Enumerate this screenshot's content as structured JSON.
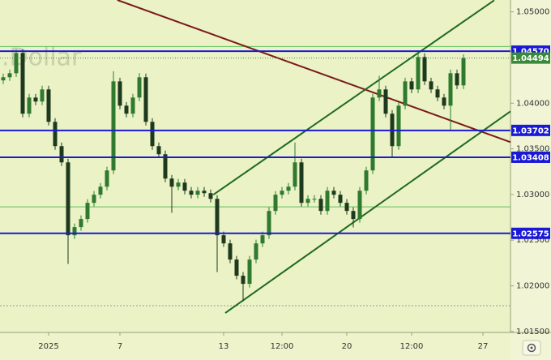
{
  "chart_data": {
    "type": "candlestick",
    "watermark": ".Dollar",
    "categories": [
      null,
      null,
      null,
      null,
      null,
      null,
      null,
      "2025",
      null,
      null,
      null,
      null,
      null,
      null,
      null,
      null,
      null,
      null,
      "7",
      null,
      null,
      null,
      null,
      null,
      null,
      null,
      null,
      null,
      null,
      null,
      null,
      null,
      null,
      null,
      "13",
      null,
      null,
      null,
      null,
      null,
      null,
      null,
      null,
      "12:00",
      null,
      null,
      null,
      null,
      null,
      null,
      null,
      null,
      null,
      "20",
      null,
      null,
      null,
      null,
      null,
      null,
      null,
      null,
      null,
      "12:00",
      null,
      null,
      null,
      null,
      null,
      null,
      null,
      null,
      null,
      null,
      "27",
      null,
      null,
      null
    ],
    "open": [
      1.0425,
      1.04284,
      1.04328,
      1.0455,
      1.03885,
      1.04062,
      1.04018,
      1.04151,
      1.03796,
      1.0353,
      1.03352,
      1.02554,
      1.02643,
      1.02732,
      1.02909,
      1.02998,
      1.03086,
      1.03264,
      1.04239,
      1.03973,
      1.03885,
      1.04062,
      1.04284,
      1.03796,
      1.0353,
      1.03441,
      1.03175,
      1.03086,
      1.03131,
      1.03042,
      1.02998,
      1.03042,
      1.03015,
      1.02953,
      1.02554,
      1.02465,
      1.02288,
      1.02111,
      1.02022,
      1.02288,
      1.02465,
      1.02554,
      1.0282,
      1.02998,
      1.03042,
      1.03086,
      1.03352,
      1.02909,
      1.02953,
      1.02953,
      1.0282,
      1.03042,
      1.02998,
      1.02909,
      1.0282,
      1.02732,
      1.03042,
      1.03264,
      1.04062,
      1.04151,
      1.03885,
      1.0353,
      1.03973,
      1.04239,
      1.04151,
      1.04506,
      1.04239,
      1.04151,
      1.04062,
      1.03973,
      1.04328,
      1.04195,
      null,
      null,
      null,
      null,
      null,
      null
    ],
    "high": [
      1.04324,
      1.04368,
      1.0459,
      1.0459,
      1.04102,
      1.04102,
      1.04191,
      1.04191,
      1.03836,
      1.0357,
      1.03392,
      1.02683,
      1.02772,
      1.02949,
      1.03038,
      1.03126,
      1.03304,
      1.0435,
      1.04279,
      1.04013,
      1.04102,
      1.0433,
      1.04324,
      1.03836,
      1.0357,
      1.03481,
      1.03215,
      1.03171,
      1.03171,
      1.03082,
      1.03082,
      1.03082,
      1.03055,
      1.02993,
      1.02594,
      1.02505,
      1.02328,
      1.02151,
      1.02328,
      1.02505,
      1.02594,
      1.0286,
      1.03038,
      1.03082,
      1.03126,
      1.0357,
      1.03392,
      1.02993,
      1.02993,
      1.02993,
      1.03082,
      1.03082,
      1.03038,
      1.02949,
      1.0286,
      1.03082,
      1.03304,
      1.04102,
      1.043,
      1.04191,
      1.03925,
      1.04013,
      1.04279,
      1.04279,
      1.0456,
      1.04546,
      1.04279,
      1.04191,
      1.04102,
      1.04368,
      1.04368,
      1.04534,
      null,
      null,
      null,
      null,
      null,
      null
    ],
    "low": [
      1.0421,
      1.04244,
      1.04288,
      1.03845,
      1.03845,
      1.03978,
      1.03978,
      1.03756,
      1.0349,
      1.03312,
      1.0224,
      1.02514,
      1.02603,
      1.02692,
      1.02869,
      1.02958,
      1.03046,
      1.03224,
      1.03933,
      1.03845,
      1.03845,
      1.04022,
      1.03756,
      1.0349,
      1.03401,
      1.03135,
      1.028,
      1.03046,
      1.03002,
      1.02958,
      1.02958,
      1.02975,
      1.02913,
      1.0215,
      1.02425,
      1.02248,
      1.02071,
      1.0183,
      1.01982,
      1.02248,
      1.02425,
      1.02514,
      1.0278,
      1.02958,
      1.03002,
      1.03046,
      1.02869,
      1.02869,
      1.02913,
      1.0278,
      1.0278,
      1.02958,
      1.02869,
      1.0278,
      1.0264,
      1.02692,
      1.03002,
      1.03224,
      1.04022,
      1.03845,
      1.034,
      1.0349,
      1.03933,
      1.04111,
      1.04111,
      1.04199,
      1.04111,
      1.04022,
      1.03933,
      1.037,
      1.04155,
      1.04155,
      null,
      null,
      null,
      null,
      null,
      null
    ],
    "close": [
      1.04284,
      1.04328,
      1.0455,
      1.03885,
      1.04062,
      1.04018,
      1.04151,
      1.03796,
      1.0353,
      1.03352,
      1.02554,
      1.02643,
      1.02732,
      1.02909,
      1.02998,
      1.03086,
      1.03264,
      1.04239,
      1.03973,
      1.03885,
      1.04062,
      1.04284,
      1.03796,
      1.0353,
      1.03441,
      1.03175,
      1.03086,
      1.03131,
      1.03042,
      1.02998,
      1.03042,
      1.03015,
      1.02953,
      1.02554,
      1.02465,
      1.02288,
      1.02111,
      1.02022,
      1.02288,
      1.02465,
      1.02554,
      1.0282,
      1.02998,
      1.03042,
      1.03086,
      1.03352,
      1.02909,
      1.02953,
      1.02953,
      1.0282,
      1.03042,
      1.02998,
      1.02909,
      1.0282,
      1.02732,
      1.03042,
      1.03264,
      1.04062,
      1.04151,
      1.03885,
      1.0353,
      1.03973,
      1.04239,
      1.04151,
      1.04506,
      1.04239,
      1.04151,
      1.04062,
      1.03973,
      1.04328,
      1.04195,
      1.04494,
      null,
      null,
      null,
      null,
      null,
      null
    ],
    "up_color": "#2f7a2f",
    "down_color": "#1e3a1e",
    "ylim": [
      1.0149,
      1.0513
    ],
    "yticks": [
      {
        "value": 1.05,
        "label": "1.05000"
      },
      {
        "value": 1.045,
        "label": "1.04500"
      },
      {
        "value": 1.04,
        "label": "1.04000"
      },
      {
        "value": 1.035,
        "label": "1.03500"
      },
      {
        "value": 1.03,
        "label": "1.03000"
      },
      {
        "value": 1.025,
        "label": "1.02500"
      },
      {
        "value": 1.02,
        "label": "1.02000"
      },
      {
        "value": 1.015,
        "label": "1.01500"
      }
    ],
    "levels": [
      {
        "value": 1.0457,
        "label": "1.04570",
        "color": "#1a1ad6"
      },
      {
        "value": 1.03702,
        "label": "1.03702",
        "color": "#1a1ad6"
      },
      {
        "value": 1.03408,
        "label": "1.03408",
        "color": "#1a1ad6"
      },
      {
        "value": 1.02575,
        "label": "1.02575",
        "color": "#1a1ad6"
      }
    ],
    "last": {
      "value": 1.04494,
      "label": "1.04494",
      "color": "#3a8a3a"
    },
    "guides": [
      {
        "value": 1.04621,
        "color": "#5cbf5c",
        "dash": false
      },
      {
        "value": 1.02865,
        "color": "#5cbf5c",
        "dash": false
      },
      {
        "value": 1.01783,
        "color": "#999999",
        "dash": true
      }
    ],
    "trendlines": [
      {
        "color": "#7a1a1a",
        "x": [
          17.6,
          78.25
        ],
        "y": [
          1.0513,
          1.03574
        ]
      },
      {
        "color": "#1f6a1f",
        "x": [
          32.4,
          75.75
        ],
        "y": [
          1.02998,
          1.05127
        ]
      },
      {
        "color": "#1f6a1f",
        "x": [
          34.25,
          78.25
        ],
        "y": [
          1.01703,
          1.03911
        ]
      }
    ]
  }
}
